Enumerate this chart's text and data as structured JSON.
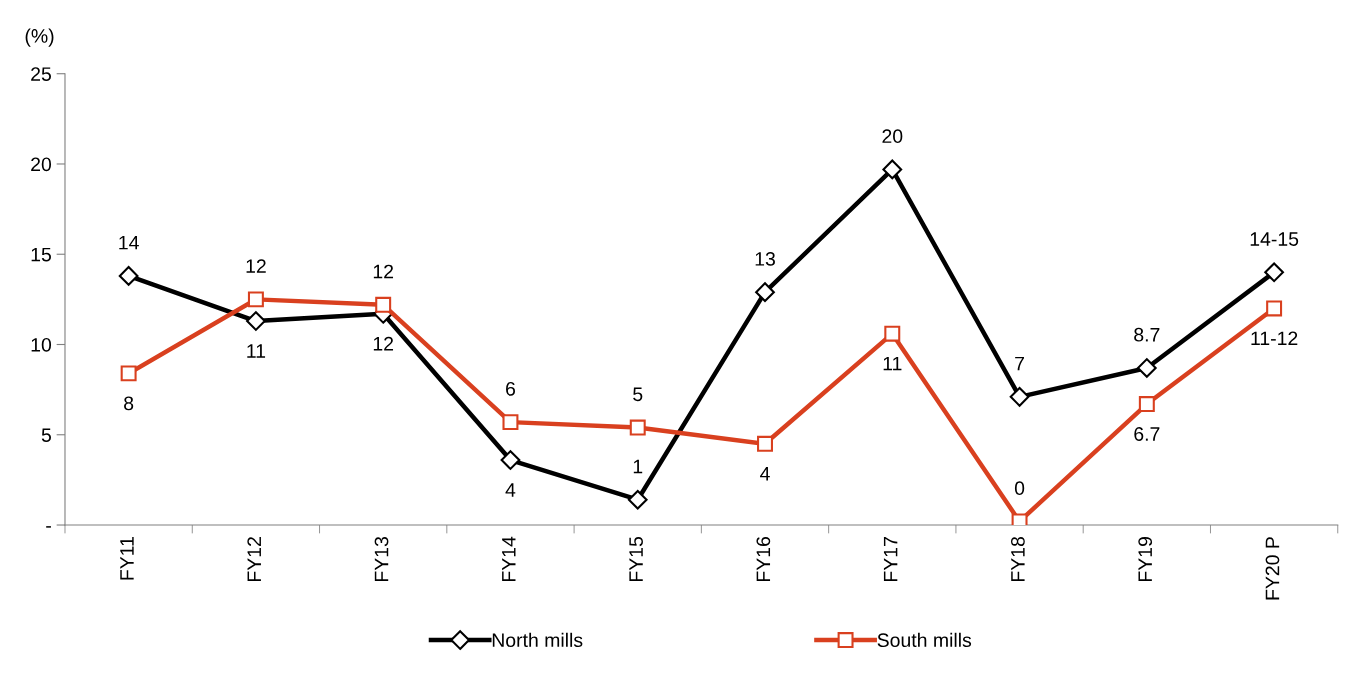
{
  "chart_data": {
    "type": "line",
    "ylabel": "(%)",
    "categories": [
      "FY11",
      "FY12",
      "FY13",
      "FY14",
      "FY15",
      "FY16",
      "FY17",
      "FY18",
      "FY19",
      "FY20 P"
    ],
    "series": [
      {
        "name": "North mills",
        "color": "#000000",
        "marker": "diamond",
        "values": [
          13.8,
          11.3,
          11.7,
          3.6,
          1.4,
          12.9,
          19.7,
          7.1,
          8.7,
          14.0
        ],
        "value_labels": [
          "14",
          "11",
          "12",
          "4",
          "1",
          "13",
          "20",
          "7",
          "8.7",
          "14-15"
        ]
      },
      {
        "name": "South mills",
        "color": "#d9401f",
        "marker": "square",
        "values": [
          8.4,
          12.5,
          12.2,
          5.7,
          5.4,
          4.5,
          10.6,
          0.2,
          6.7,
          12.0
        ],
        "value_labels": [
          "8",
          "12",
          "12",
          "6",
          "5",
          "4",
          "11",
          "0",
          "6.7",
          "11-12"
        ]
      }
    ],
    "ylim": [
      0,
      25
    ],
    "yticks": [
      {
        "value": 0,
        "label": "-"
      },
      5,
      10,
      15,
      20,
      25
    ],
    "grid": false,
    "legend": "bottom",
    "line_style": "solid"
  }
}
